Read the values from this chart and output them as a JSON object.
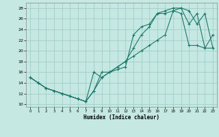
{
  "xlabel": "Humidex (Indice chaleur)",
  "bg_color": "#c5e8e3",
  "grid_color": "#a2cdc8",
  "line_color": "#1a7868",
  "xlim": [
    -0.5,
    23.5
  ],
  "ylim": [
    9.5,
    29.0
  ],
  "xticks": [
    0,
    1,
    2,
    3,
    4,
    5,
    6,
    7,
    8,
    9,
    10,
    11,
    12,
    13,
    14,
    15,
    16,
    17,
    18,
    19,
    20,
    21,
    22,
    23
  ],
  "yticks": [
    10,
    12,
    14,
    16,
    18,
    20,
    22,
    24,
    26,
    28
  ],
  "line1_x": [
    0,
    1,
    2,
    3,
    4,
    5,
    6,
    7,
    8,
    9,
    10,
    11,
    12,
    13,
    14,
    15,
    16,
    17,
    18,
    19,
    20,
    21,
    22,
    23
  ],
  "line1_y": [
    15,
    14,
    13,
    12.5,
    12,
    11.5,
    11,
    10.5,
    12.5,
    16,
    16,
    17,
    18,
    20.5,
    23,
    24.5,
    27,
    27,
    27.5,
    28,
    27.5,
    25,
    27,
    20.5
  ],
  "line2_x": [
    0,
    1,
    2,
    3,
    4,
    5,
    6,
    7,
    8,
    9,
    10,
    11,
    12,
    13,
    14,
    15,
    16,
    17,
    18,
    19,
    20,
    21,
    22,
    23
  ],
  "line2_y": [
    15,
    14,
    13,
    12.5,
    12,
    11.5,
    11,
    10.5,
    16,
    15,
    16,
    17,
    18,
    19,
    20,
    21,
    22,
    23,
    27.5,
    27,
    21,
    21,
    20.5,
    20.5
  ],
  "line3_x": [
    0,
    1,
    2,
    3,
    4,
    5,
    6,
    7,
    8,
    9,
    10,
    11,
    12,
    13,
    14,
    15,
    16,
    17,
    18,
    19,
    20,
    21,
    22,
    23
  ],
  "line3_y": [
    15,
    14,
    13,
    12.5,
    12,
    11.5,
    11,
    10.5,
    12.5,
    15,
    16,
    16.5,
    17,
    23,
    24.5,
    25,
    27,
    27.5,
    28,
    28,
    25,
    27,
    20.5,
    23
  ]
}
